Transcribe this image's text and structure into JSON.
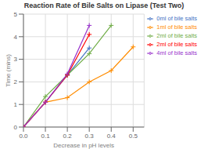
{
  "chart_data": {
    "type": "line",
    "title": "Reaction Rate of Bile Salts on Lipase (Test Two)",
    "x_label": "Decrease in pH levels",
    "y_label": "Time (mins)",
    "series": [
      {
        "name": "0ml of bile salts",
        "color": "#4472C4",
        "marker": "plus",
        "x": [
          0,
          0.1,
          0.2,
          0.3
        ],
        "values": [
          0,
          1.1,
          2.3,
          3.5
        ]
      },
      {
        "name": "1ml of bile salts",
        "color": "#FF8C00",
        "marker": "plus",
        "x": [
          0,
          0.1,
          0.2,
          0.3,
          0.4,
          0.5
        ],
        "values": [
          0,
          1.1,
          1.3,
          2.0,
          2.5,
          3.55
        ]
      },
      {
        "name": "2ml of bile salts",
        "color": "#70AD47",
        "marker": "plus",
        "x": [
          0,
          0.1,
          0.2,
          0.3,
          0.4
        ],
        "values": [
          0,
          1.35,
          2.3,
          3.25,
          4.5
        ]
      },
      {
        "name": "2ml of bile salts",
        "color": "#FF0000",
        "marker": "plus",
        "x": [
          0,
          0.1,
          0.2,
          0.3
        ],
        "values": [
          0,
          1.1,
          2.3,
          4.1
        ]
      },
      {
        "name": "4ml of bile salts",
        "color": "#9933CC",
        "marker": "plus",
        "x": [
          0,
          0.1,
          0.2,
          0.3
        ],
        "values": [
          0,
          1.1,
          2.35,
          4.5
        ]
      }
    ],
    "xlim": [
      0,
      0.55
    ],
    "ylim": [
      0,
      5
    ],
    "xticks": [
      {
        "value": 0,
        "label": "0.0"
      },
      0.1,
      0.2,
      0.3,
      0.4,
      0.5
    ],
    "yticks": [
      0,
      1,
      2,
      3,
      4,
      5
    ],
    "grid": true,
    "legend": "right"
  }
}
